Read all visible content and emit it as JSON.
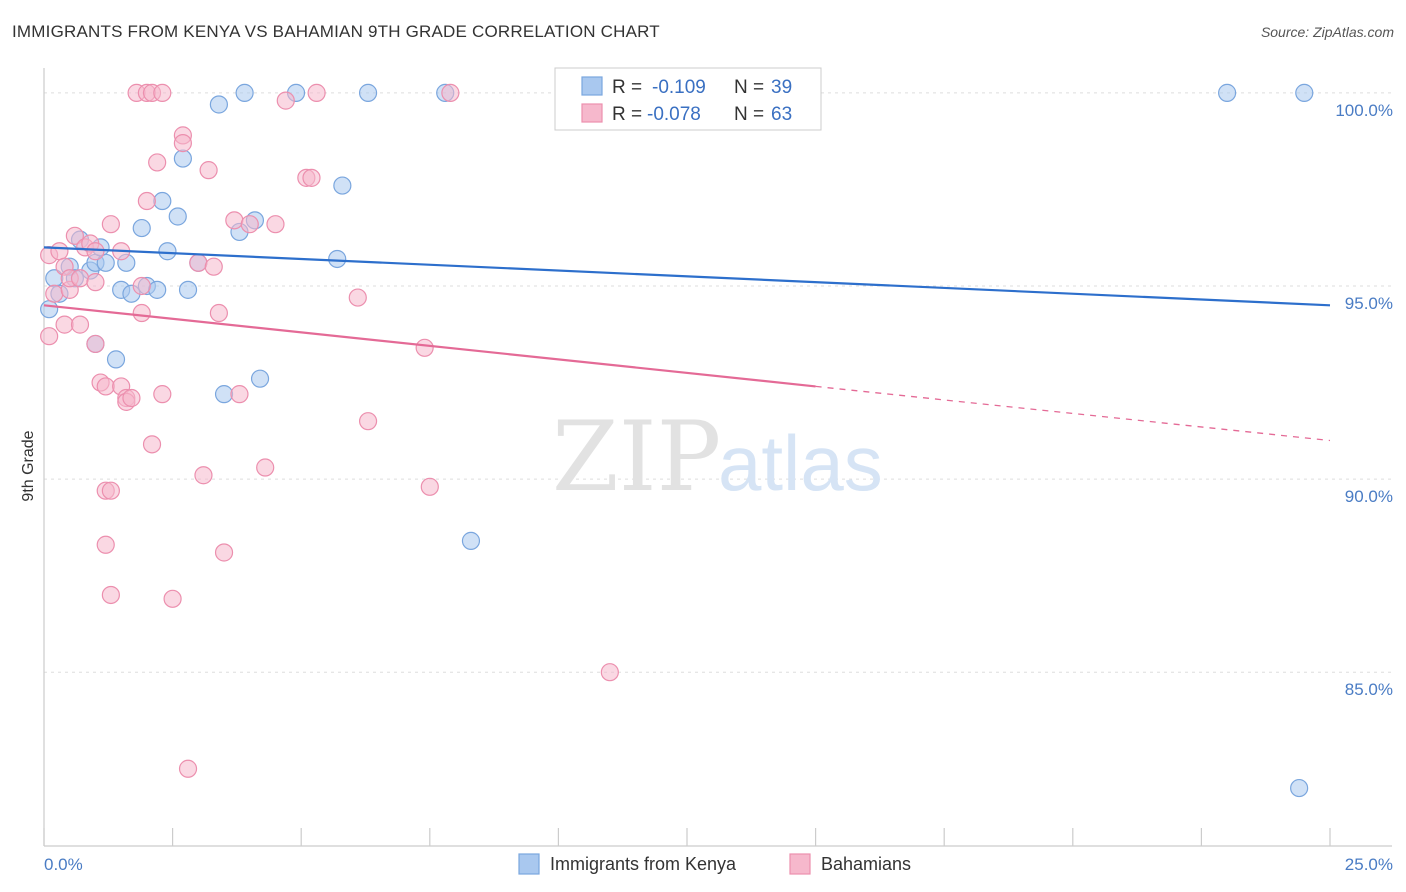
{
  "header": {
    "title": "IMMIGRANTS FROM KENYA VS BAHAMIAN 9TH GRADE CORRELATION CHART",
    "source": "Source: ZipAtlas.com"
  },
  "watermark": {
    "part1": "ZIP",
    "part2": "atlas"
  },
  "colors": {
    "blue_fill": "#a9c8ef",
    "blue_stroke": "#7aa6de",
    "blue_line": "#2d6fcc",
    "pink_fill": "#f6b8cc",
    "pink_stroke": "#ec8fae",
    "pink_line": "#e46a96",
    "tick_label": "#4a7cc4",
    "grid": "#dddddd"
  },
  "legend_top": {
    "rows": [
      {
        "r_label": "R =",
        "r_value": "-0.109",
        "n_label": "N =",
        "n_value": "39",
        "color": "blue"
      },
      {
        "r_label": "R =",
        "r_value": "-0.078",
        "n_label": "N =",
        "n_value": "63",
        "color": "pink"
      }
    ]
  },
  "chart_data": {
    "type": "scatter",
    "title": "IMMIGRANTS FROM KENYA VS BAHAMIAN 9TH GRADE CORRELATION CHART",
    "xlabel": "",
    "ylabel": "9th Grade",
    "xlim": [
      0,
      25
    ],
    "ylim": [
      80.5,
      100.8
    ],
    "x_tick_labels": [
      {
        "value": 0,
        "label": "0.0%"
      },
      {
        "value": 25,
        "label": "25.0%"
      }
    ],
    "x_minor_ticks": [
      2.5,
      5,
      7.5,
      10,
      12.5,
      15,
      17.5,
      20,
      22.5
    ],
    "y_ticks": [
      {
        "value": 100,
        "label": "100.0%"
      },
      {
        "value": 95,
        "label": "95.0%"
      },
      {
        "value": 90,
        "label": "90.0%"
      },
      {
        "value": 85,
        "label": "85.0%"
      }
    ],
    "grid": true,
    "legend_position": "top-center",
    "series": [
      {
        "name": "Immigrants from Kenya",
        "color": "blue",
        "r": -0.109,
        "n": 39,
        "trend": {
          "x": [
            0,
            25
          ],
          "y": [
            96.0,
            94.5
          ],
          "solid_to": 25
        },
        "points": [
          [
            0.1,
            94.4
          ],
          [
            0.2,
            95.2
          ],
          [
            0.3,
            94.8
          ],
          [
            0.5,
            95.5
          ],
          [
            0.6,
            95.2
          ],
          [
            0.7,
            96.2
          ],
          [
            0.9,
            95.4
          ],
          [
            1.0,
            95.6
          ],
          [
            1.0,
            93.5
          ],
          [
            1.1,
            96.0
          ],
          [
            1.2,
            95.6
          ],
          [
            1.4,
            93.1
          ],
          [
            1.5,
            94.9
          ],
          [
            1.6,
            95.6
          ],
          [
            1.7,
            94.8
          ],
          [
            1.9,
            96.5
          ],
          [
            2.0,
            95.0
          ],
          [
            2.2,
            94.9
          ],
          [
            2.3,
            97.2
          ],
          [
            2.4,
            95.9
          ],
          [
            2.6,
            96.8
          ],
          [
            2.7,
            98.3
          ],
          [
            2.8,
            94.9
          ],
          [
            3.0,
            95.6
          ],
          [
            3.4,
            99.7
          ],
          [
            3.5,
            92.2
          ],
          [
            3.8,
            96.4
          ],
          [
            3.9,
            100.0
          ],
          [
            4.1,
            96.7
          ],
          [
            4.2,
            92.6
          ],
          [
            4.9,
            100.0
          ],
          [
            5.7,
            95.7
          ],
          [
            5.8,
            97.6
          ],
          [
            6.3,
            100.0
          ],
          [
            7.8,
            100.0
          ],
          [
            8.3,
            88.4
          ],
          [
            23.0,
            100.0
          ],
          [
            24.5,
            100.0
          ],
          [
            24.4,
            82.0
          ]
        ]
      },
      {
        "name": "Bahamians",
        "color": "pink",
        "r": -0.078,
        "n": 63,
        "trend": {
          "x": [
            0,
            25
          ],
          "y": [
            94.5,
            91.0
          ],
          "solid_to": 15
        },
        "points": [
          [
            0.1,
            93.7
          ],
          [
            0.1,
            95.8
          ],
          [
            0.2,
            94.8
          ],
          [
            0.3,
            95.9
          ],
          [
            0.4,
            95.5
          ],
          [
            0.4,
            94.0
          ],
          [
            0.5,
            94.9
          ],
          [
            0.5,
            95.2
          ],
          [
            0.6,
            96.3
          ],
          [
            0.7,
            95.2
          ],
          [
            0.7,
            94.0
          ],
          [
            0.8,
            96.0
          ],
          [
            0.9,
            96.1
          ],
          [
            1.0,
            95.9
          ],
          [
            1.0,
            95.1
          ],
          [
            1.0,
            93.5
          ],
          [
            1.1,
            92.5
          ],
          [
            1.2,
            92.4
          ],
          [
            1.2,
            89.7
          ],
          [
            1.2,
            88.3
          ],
          [
            1.3,
            96.6
          ],
          [
            1.3,
            89.7
          ],
          [
            1.3,
            87.0
          ],
          [
            1.5,
            95.9
          ],
          [
            1.5,
            92.4
          ],
          [
            1.6,
            92.1
          ],
          [
            1.6,
            92.0
          ],
          [
            1.7,
            92.1
          ],
          [
            1.8,
            100.0
          ],
          [
            1.9,
            94.3
          ],
          [
            1.9,
            95.0
          ],
          [
            2.0,
            97.2
          ],
          [
            2.0,
            100.0
          ],
          [
            2.1,
            90.9
          ],
          [
            2.1,
            100.0
          ],
          [
            2.2,
            98.2
          ],
          [
            2.3,
            100.0
          ],
          [
            2.3,
            92.2
          ],
          [
            2.5,
            86.9
          ],
          [
            2.7,
            98.9
          ],
          [
            2.7,
            98.7
          ],
          [
            2.8,
            82.5
          ],
          [
            3.0,
            95.6
          ],
          [
            3.1,
            90.1
          ],
          [
            3.2,
            98.0
          ],
          [
            3.3,
            95.5
          ],
          [
            3.4,
            94.3
          ],
          [
            3.5,
            88.1
          ],
          [
            3.7,
            96.7
          ],
          [
            3.8,
            92.2
          ],
          [
            4.0,
            96.6
          ],
          [
            4.3,
            90.3
          ],
          [
            4.5,
            96.6
          ],
          [
            4.7,
            99.8
          ],
          [
            5.1,
            97.8
          ],
          [
            5.2,
            97.8
          ],
          [
            5.3,
            100.0
          ],
          [
            6.1,
            94.7
          ],
          [
            6.3,
            91.5
          ],
          [
            7.4,
            93.4
          ],
          [
            7.5,
            89.8
          ],
          [
            7.9,
            100.0
          ],
          [
            11.0,
            85.0
          ]
        ]
      }
    ]
  }
}
